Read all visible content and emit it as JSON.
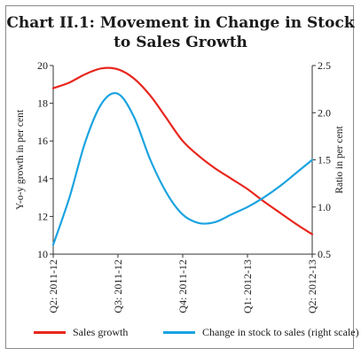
{
  "chart_data": {
    "type": "line",
    "title": "Chart II.1: Movement in Change in Stock to Sales Growth",
    "ylabel_left": "Y-o-y growth in per cent",
    "ylabel_right": "Ratio in per cent",
    "ylim_left": [
      10,
      20
    ],
    "ylim_right": [
      0.5,
      2.5
    ],
    "yticks_left": [
      "10",
      "12",
      "14",
      "16",
      "18",
      "20"
    ],
    "yticks_right": [
      "0.5",
      "1.0",
      "1.5",
      "2.0",
      "2.5"
    ],
    "categories": [
      "Q2: 2011-12",
      "Q3: 2011-12",
      "Q4: 2011-12",
      "Q1: 2012-13",
      "Q2: 2012-13"
    ],
    "grid": false,
    "legend_position": "bottom",
    "series": [
      {
        "name": "Sales growth",
        "axis": "left",
        "color": "#e8261d",
        "x": [
          0,
          0.25,
          0.5,
          0.75,
          1.0,
          1.25,
          1.5,
          1.75,
          2.0,
          2.25,
          2.5,
          2.75,
          3.0,
          3.25,
          3.5,
          3.75,
          4.0
        ],
        "values": [
          18.8,
          19.1,
          19.55,
          19.85,
          19.8,
          19.3,
          18.4,
          17.2,
          16.0,
          15.2,
          14.55,
          14.0,
          13.45,
          12.8,
          12.2,
          11.6,
          11.05
        ]
      },
      {
        "name": "Change in stock to sales (right scale)",
        "axis": "right",
        "color": "#1aa3e0",
        "x": [
          0,
          0.25,
          0.5,
          0.75,
          1.0,
          1.25,
          1.5,
          1.75,
          2.0,
          2.25,
          2.5,
          2.75,
          3.0,
          3.25,
          3.5,
          3.75,
          4.0
        ],
        "values": [
          0.6,
          1.1,
          1.7,
          2.1,
          2.2,
          1.95,
          1.5,
          1.15,
          0.92,
          0.83,
          0.84,
          0.92,
          1.0,
          1.1,
          1.22,
          1.36,
          1.5
        ]
      }
    ]
  }
}
